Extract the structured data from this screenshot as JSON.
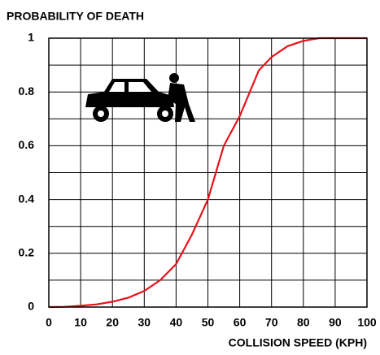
{
  "chart_data": {
    "type": "line",
    "title": "PROBABILITY OF DEATH",
    "x_label": "COLLISION SPEED (KPH)",
    "series": [
      {
        "color": "#e8131a",
        "x": [
          0,
          5,
          10,
          15,
          20,
          25,
          30,
          35,
          40,
          45,
          50,
          55,
          60,
          66,
          70,
          75,
          80,
          85,
          90,
          100
        ],
        "values": [
          0,
          0.001,
          0.005,
          0.01,
          0.02,
          0.035,
          0.06,
          0.1,
          0.16,
          0.27,
          0.4,
          0.6,
          0.71,
          0.88,
          0.93,
          0.97,
          0.99,
          1.0,
          1.0,
          1.0
        ]
      }
    ],
    "xlim": [
      0,
      100
    ],
    "xticks": [
      0,
      10,
      20,
      30,
      40,
      50,
      60,
      70,
      80,
      90,
      100
    ],
    "ylim": [
      0,
      1
    ],
    "yticks": [
      0,
      0.2,
      0.4,
      0.6,
      0.8,
      1
    ],
    "y_minor_ticks": [
      0.1,
      0.3,
      0.5,
      0.7,
      0.9
    ],
    "grid": true
  }
}
